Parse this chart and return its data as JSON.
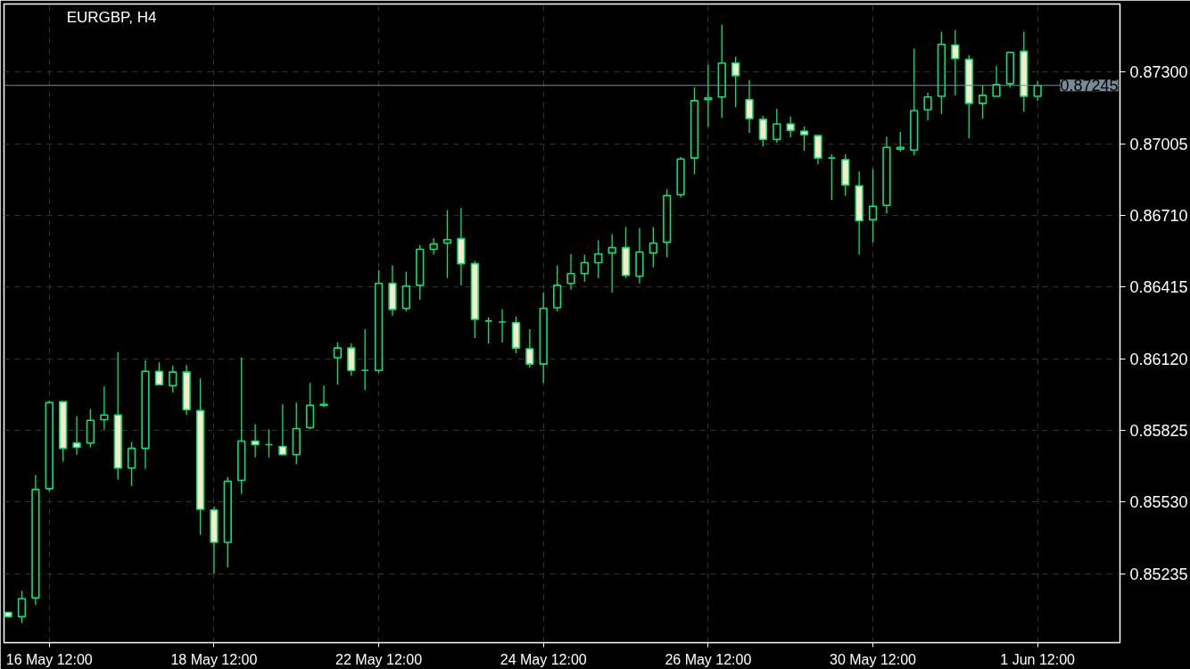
{
  "chart_data": {
    "type": "candlestick",
    "title": "EURGBP, H4",
    "categories": [
      null,
      null,
      null,
      "16 May 12:00",
      null,
      null,
      null,
      null,
      null,
      null,
      null,
      null,
      null,
      null,
      null,
      "18 May 12:00",
      null,
      null,
      null,
      null,
      null,
      null,
      null,
      null,
      null,
      null,
      null,
      "22 May 12:00",
      null,
      null,
      null,
      null,
      null,
      null,
      null,
      null,
      null,
      null,
      null,
      "24 May 12:00",
      null,
      null,
      null,
      null,
      null,
      null,
      null,
      null,
      null,
      null,
      null,
      "26 May 12:00",
      null,
      null,
      null,
      null,
      null,
      null,
      null,
      null,
      null,
      null,
      null,
      "30 May 12:00",
      null,
      null,
      null,
      null,
      null,
      null,
      null,
      null,
      null,
      null,
      null,
      "1 Jun 12:00"
    ],
    "ohlc": [
      [
        0.85076,
        0.85076,
        0.85054,
        0.85058
      ],
      [
        0.85058,
        0.85165,
        0.85032,
        0.85132
      ],
      [
        0.85135,
        0.85641,
        0.85106,
        0.85582
      ],
      [
        0.85585,
        0.85947,
        0.85574,
        0.85939
      ],
      [
        0.85943,
        0.85943,
        0.85696,
        0.85751
      ],
      [
        0.85773,
        0.85884,
        0.85725,
        0.85755
      ],
      [
        0.85773,
        0.85913,
        0.85755,
        0.85866
      ],
      [
        0.85869,
        0.86006,
        0.85829,
        0.85888
      ],
      [
        0.85888,
        0.86146,
        0.85622,
        0.8567
      ],
      [
        0.8567,
        0.85777,
        0.85596,
        0.85751
      ],
      [
        0.85751,
        0.86113,
        0.85666,
        0.86068
      ],
      [
        0.86068,
        0.86105,
        0.86013,
        0.86013
      ],
      [
        0.86009,
        0.86091,
        0.8598,
        0.86065
      ],
      [
        0.86065,
        0.86094,
        0.85888,
        0.8591
      ],
      [
        0.85906,
        0.86039,
        0.85394,
        0.855
      ],
      [
        0.85497,
        0.85512,
        0.85235,
        0.85364
      ],
      [
        0.85364,
        0.85633,
        0.85261,
        0.85615
      ],
      [
        0.85619,
        0.86124,
        0.85563,
        0.85781
      ],
      [
        0.85781,
        0.85851,
        0.85714,
        0.85766
      ],
      [
        0.85766,
        0.85829,
        0.85714,
        0.85766
      ],
      [
        0.85759,
        0.85932,
        0.85725,
        0.85725
      ],
      [
        0.85725,
        0.85939,
        0.85685,
        0.85832
      ],
      [
        0.85836,
        0.8602,
        0.85829,
        0.85928
      ],
      [
        0.85928,
        0.86009,
        0.85921,
        0.85932
      ],
      [
        0.86124,
        0.86187,
        0.86013,
        0.86164
      ],
      [
        0.86164,
        0.86183,
        0.8605,
        0.86072
      ],
      [
        0.86072,
        0.86242,
        0.85991,
        0.86072
      ],
      [
        0.86072,
        0.86485,
        0.86061,
        0.8643
      ],
      [
        0.8643,
        0.86504,
        0.86297,
        0.86323
      ],
      [
        0.86327,
        0.86478,
        0.86315,
        0.86419
      ],
      [
        0.86422,
        0.86588,
        0.86363,
        0.8657
      ],
      [
        0.8657,
        0.86616,
        0.86548,
        0.86592
      ],
      [
        0.86596,
        0.86732,
        0.86452,
        0.8661
      ],
      [
        0.86614,
        0.8674,
        0.86422,
        0.86511
      ],
      [
        0.86511,
        0.86522,
        0.86205,
        0.86282
      ],
      [
        0.86275,
        0.8629,
        0.86183,
        0.86275
      ],
      [
        0.86271,
        0.86323,
        0.86187,
        0.86271
      ],
      [
        0.86268,
        0.86293,
        0.86142,
        0.86164
      ],
      [
        0.86161,
        0.86242,
        0.86083,
        0.86098
      ],
      [
        0.86098,
        0.86393,
        0.8602,
        0.86327
      ],
      [
        0.8633,
        0.86504,
        0.86315,
        0.86422
      ],
      [
        0.8643,
        0.86551,
        0.86404,
        0.8647
      ],
      [
        0.8647,
        0.86548,
        0.86437,
        0.86515
      ],
      [
        0.86515,
        0.86607,
        0.86452,
        0.86551
      ],
      [
        0.86555,
        0.86633,
        0.86393,
        0.86577
      ],
      [
        0.86577,
        0.86662,
        0.86452,
        0.86463
      ],
      [
        0.86459,
        0.86658,
        0.8643,
        0.86559
      ],
      [
        0.86555,
        0.86662,
        0.86496,
        0.86596
      ],
      [
        0.86599,
        0.86817,
        0.86537,
        0.86791
      ],
      [
        0.86795,
        0.8695,
        0.86784,
        0.86942
      ],
      [
        0.86946,
        0.87237,
        0.8688,
        0.87182
      ],
      [
        0.87186,
        0.8733,
        0.87075,
        0.87193
      ],
      [
        0.87197,
        0.87495,
        0.87112,
        0.87337
      ],
      [
        0.87337,
        0.87363,
        0.87156,
        0.87285
      ],
      [
        0.87186,
        0.87267,
        0.87049,
        0.87108
      ],
      [
        0.87105,
        0.87119,
        0.86994,
        0.87023
      ],
      [
        0.87023,
        0.87149,
        0.87009,
        0.87086
      ],
      [
        0.87086,
        0.87116,
        0.87031,
        0.8706
      ],
      [
        0.87057,
        0.87075,
        0.86976,
        0.87042
      ],
      [
        0.87038,
        0.87042,
        0.8692,
        0.86946
      ],
      [
        0.86946,
        0.86961,
        0.86773,
        0.86946
      ],
      [
        0.86939,
        0.86961,
        0.86791,
        0.86835
      ],
      [
        0.86832,
        0.86891,
        0.86548,
        0.86688
      ],
      [
        0.86692,
        0.86902,
        0.86599,
        0.86747
      ],
      [
        0.86751,
        0.87034,
        0.86717,
        0.8699
      ],
      [
        0.86983,
        0.87053,
        0.86972,
        0.8699
      ],
      [
        0.86979,
        0.87396,
        0.86957,
        0.87141
      ],
      [
        0.87145,
        0.87215,
        0.87101,
        0.87197
      ],
      [
        0.872,
        0.87466,
        0.87127,
        0.87414
      ],
      [
        0.87411,
        0.87473,
        0.87204,
        0.87355
      ],
      [
        0.87352,
        0.8737,
        0.87027,
        0.87171
      ],
      [
        0.87171,
        0.87245,
        0.87108,
        0.87204
      ],
      [
        0.872,
        0.87326,
        0.872,
        0.87248
      ],
      [
        0.87252,
        0.87385,
        0.87237,
        0.87381
      ],
      [
        0.87385,
        0.87466,
        0.87138,
        0.872
      ],
      [
        0.872,
        0.87263,
        0.87182,
        0.87245
      ]
    ],
    "color": "#00e676",
    "colors": [
      "#ffe8cc",
      "#000000",
      "#000000",
      "#000000",
      "#ffe8cc",
      "#ffe8cc",
      "#000000",
      "#000000",
      "#ffe8cc",
      "#000000",
      "#000000",
      "#ffe8cc",
      "#000000",
      "#ffe8cc",
      "#ffe8cc",
      "#ffe8cc",
      "#000000",
      "#000000",
      "#ffe8cc",
      "#00e676",
      "#ffe8cc",
      "#000000",
      "#000000",
      "#000000",
      "#000000",
      "#ffe8cc",
      "#00e676",
      "#000000",
      "#ffe8cc",
      "#000000",
      "#000000",
      "#000000",
      "#000000",
      "#ffe8cc",
      "#ffe8cc",
      "#00e676",
      "#00e676",
      "#ffe8cc",
      "#ffe8cc",
      "#000000",
      "#000000",
      "#000000",
      "#000000",
      "#000000",
      "#000000",
      "#ffe8cc",
      "#000000",
      "#000000",
      "#000000",
      "#000000",
      "#000000",
      "#000000",
      "#000000",
      "#ffe8cc",
      "#ffe8cc",
      "#ffe8cc",
      "#000000",
      "#ffe8cc",
      "#ffe8cc",
      "#ffe8cc",
      "#00e676",
      "#ffe8cc",
      "#ffe8cc",
      "#000000",
      "#000000",
      "#000000",
      "#000000",
      "#000000",
      "#000000",
      "#ffe8cc",
      "#ffe8cc",
      "#000000",
      "#000000",
      "#000000",
      "#ffe8cc",
      "#000000"
    ],
    "ylim": [
      0.84951,
      0.8758
    ],
    "yticks": [
      {
        "value": 0.85235,
        "label": "0.85235"
      },
      {
        "value": 0.8553,
        "label": "0.85530"
      },
      {
        "value": 0.85825,
        "label": "0.85825"
      },
      {
        "value": 0.8612,
        "label": "0.86120"
      },
      {
        "value": 0.86415,
        "label": "0.86415"
      },
      {
        "value": 0.8671,
        "label": "0.86710"
      },
      {
        "value": 0.87005,
        "label": "0.87005"
      },
      {
        "value": 0.873,
        "label": "0.87300"
      }
    ],
    "ref_lines": [
      {
        "axis": "y",
        "value": 0.87245,
        "label": "0.87245",
        "color": "#7a8a99"
      }
    ],
    "grid": true
  }
}
